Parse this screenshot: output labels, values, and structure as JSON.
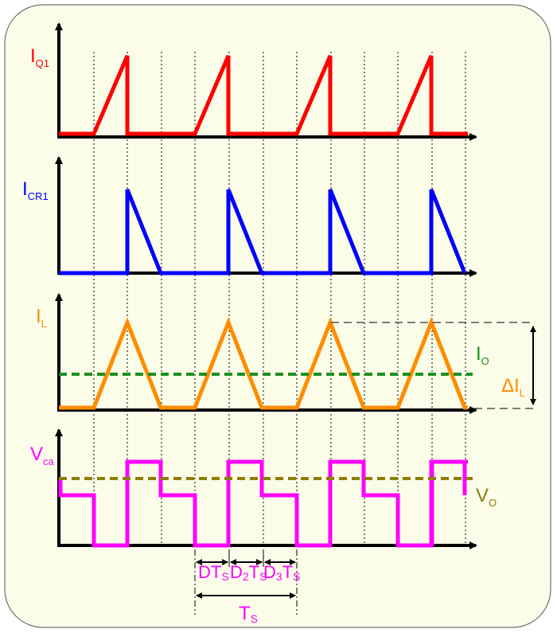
{
  "colors": {
    "panel_bg": "#fbfde9",
    "iq1": "#ff0000",
    "icr1": "#0000ff",
    "il": "#ff8c00",
    "io_line": "#1f8f1f",
    "vca": "#ff00ff",
    "vo_line": "#8c7e00",
    "axis": "#000000"
  },
  "labels": {
    "iq1": {
      "main": "I",
      "sub": "Q1"
    },
    "icr1": {
      "main": "I",
      "sub": "CR1"
    },
    "il": {
      "main": "I",
      "sub": "L"
    },
    "io": {
      "main": "I",
      "sub": "O"
    },
    "delta_il": {
      "main": "ΔI",
      "sub": "L"
    },
    "vca": {
      "main": "V",
      "sub": "ca"
    },
    "vo": {
      "main": "V",
      "sub": "O"
    },
    "dts": {
      "main": "DT",
      "sub": "S"
    },
    "d2ts": {
      "main": "D",
      "sub1": "2",
      "mid": "T",
      "sub2": "S"
    },
    "d3ts": {
      "main": "D",
      "sub1": "3",
      "mid": "T",
      "sub2": "S"
    },
    "ts": {
      "main": "T",
      "sub": "S"
    }
  },
  "waveform": {
    "periods": 4,
    "phases": [
      "D",
      "D2",
      "D3"
    ],
    "traces": [
      {
        "id": "iq1",
        "shape": "rising ramp during D, zero elsewhere"
      },
      {
        "id": "icr1",
        "shape": "falling ramp during D2, zero elsewhere"
      },
      {
        "id": "il",
        "shape": "triangle rising in D, falling in D2, zero in D3"
      },
      {
        "id": "vca",
        "shape": "stepped: low in D, high in D2, mid in D3"
      }
    ]
  }
}
